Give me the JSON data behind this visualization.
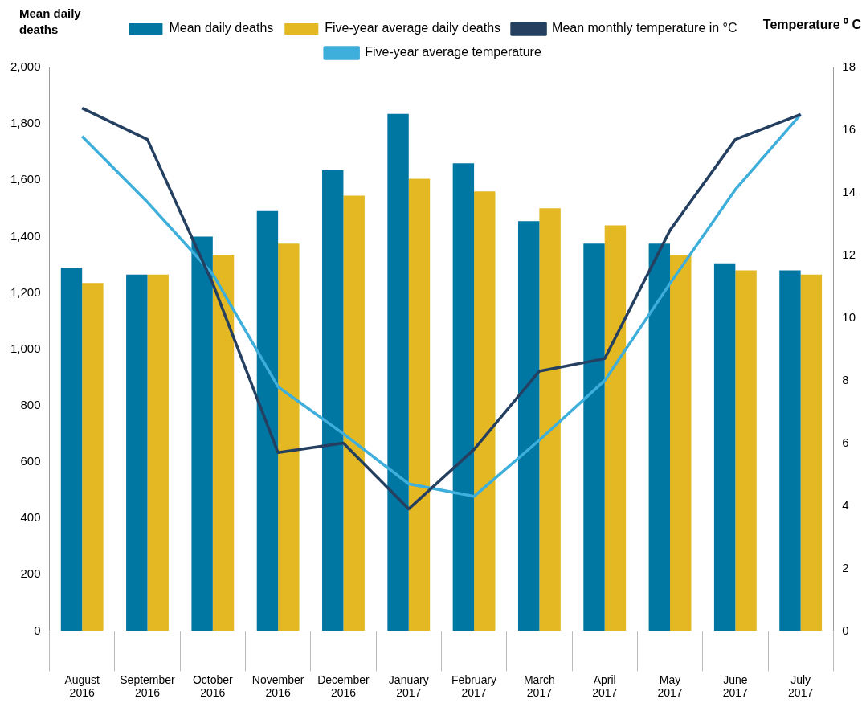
{
  "chart_data": {
    "type": "bar",
    "ylabel": "Mean daily deaths",
    "y2label": "Temperature ⁰ C",
    "categories": [
      "August 2016",
      "September 2016",
      "October 2016",
      "November 2016",
      "December 2016",
      "January 2017",
      "February 2017",
      "March 2017",
      "April 2017",
      "May 2017",
      "June 2017",
      "July 2017"
    ],
    "series": [
      {
        "name": "Mean daily deaths",
        "color": "#0076a3",
        "values": [
          1290,
          1265,
          1400,
          1490,
          1635,
          1835,
          1660,
          1455,
          1375,
          1375,
          1305,
          1280
        ]
      },
      {
        "name": "Five-year average daily deaths",
        "color": "#e3b823",
        "values": [
          1235,
          1265,
          1335,
          1375,
          1545,
          1605,
          1560,
          1500,
          1440,
          1335,
          1280,
          1265
        ]
      },
      {
        "name": "Mean monthly temperature in °C",
        "type": "line",
        "axis": "y2",
        "color": "#243f60",
        "values": [
          16.7,
          15.7,
          11.1,
          5.7,
          6.0,
          3.9,
          5.8,
          8.3,
          8.7,
          12.8,
          15.7,
          16.5
        ]
      },
      {
        "name": "Five-year average temperature",
        "type": "line",
        "axis": "y2",
        "color": "#3eaedb",
        "values": [
          15.8,
          13.7,
          11.4,
          7.8,
          6.3,
          4.7,
          4.3,
          6.1,
          8.0,
          11.1,
          14.1,
          16.5
        ]
      }
    ],
    "ylim": [
      0,
      2000
    ],
    "yticks": [
      0,
      {
        "value": 200,
        "label": "200"
      },
      400,
      600,
      800,
      {
        "value": 1000,
        "label": "1,000"
      },
      {
        "value": 1200,
        "label": "1,200"
      },
      {
        "value": 1400,
        "label": "1,400"
      },
      {
        "value": 1600,
        "label": "1,600"
      },
      {
        "value": 1800,
        "label": "1,800"
      },
      {
        "value": 2000,
        "label": "2,000"
      }
    ],
    "y2lim": [
      0,
      18
    ],
    "y2ticks": [
      0,
      2,
      4,
      6,
      8,
      10,
      12,
      14,
      16,
      18
    ],
    "grid": false,
    "legend": "top",
    "marker": "none",
    "line_style": "solid"
  }
}
